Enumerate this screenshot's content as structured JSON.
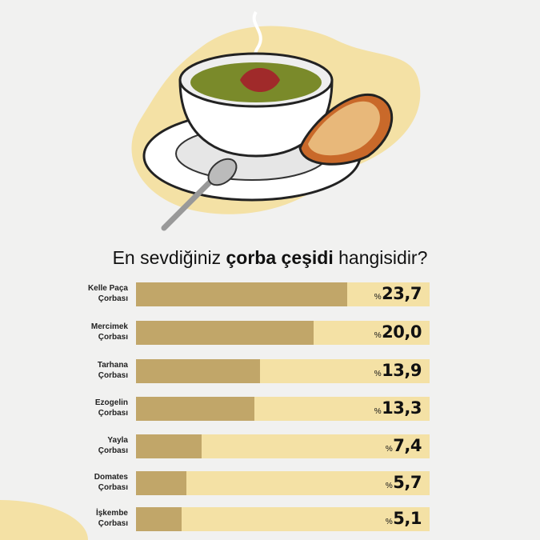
{
  "chart_data": {
    "type": "bar",
    "orientation": "horizontal",
    "title_parts": [
      "En sevdiğiniz ",
      "çorba çeşidi",
      " hangisidir?"
    ],
    "categories": [
      [
        "Kelle Paça",
        "Çorbası"
      ],
      [
        "Mercimek",
        "Çorbası"
      ],
      [
        "Tarhana",
        "Çorbası"
      ],
      [
        "Ezogelin",
        "Çorbası"
      ],
      [
        "Yayla",
        "Çorbası"
      ],
      [
        "Domates",
        "Çorbası"
      ],
      [
        "İşkembe",
        "Çorbası"
      ]
    ],
    "values": [
      23.7,
      20.0,
      13.9,
      13.3,
      7.4,
      5.7,
      5.1
    ],
    "value_labels": [
      "23,7",
      "20,0",
      "13,9",
      "13,3",
      "7,4",
      "5,7",
      "5,1"
    ],
    "value_prefix": "%",
    "xlim": [
      0,
      33
    ],
    "grid": false,
    "colors": {
      "fill": "#c1a669",
      "track": "#f4e1a5",
      "background": "#f1f1f0"
    }
  },
  "illustration": "soup-bowl-with-bread-and-spoon"
}
